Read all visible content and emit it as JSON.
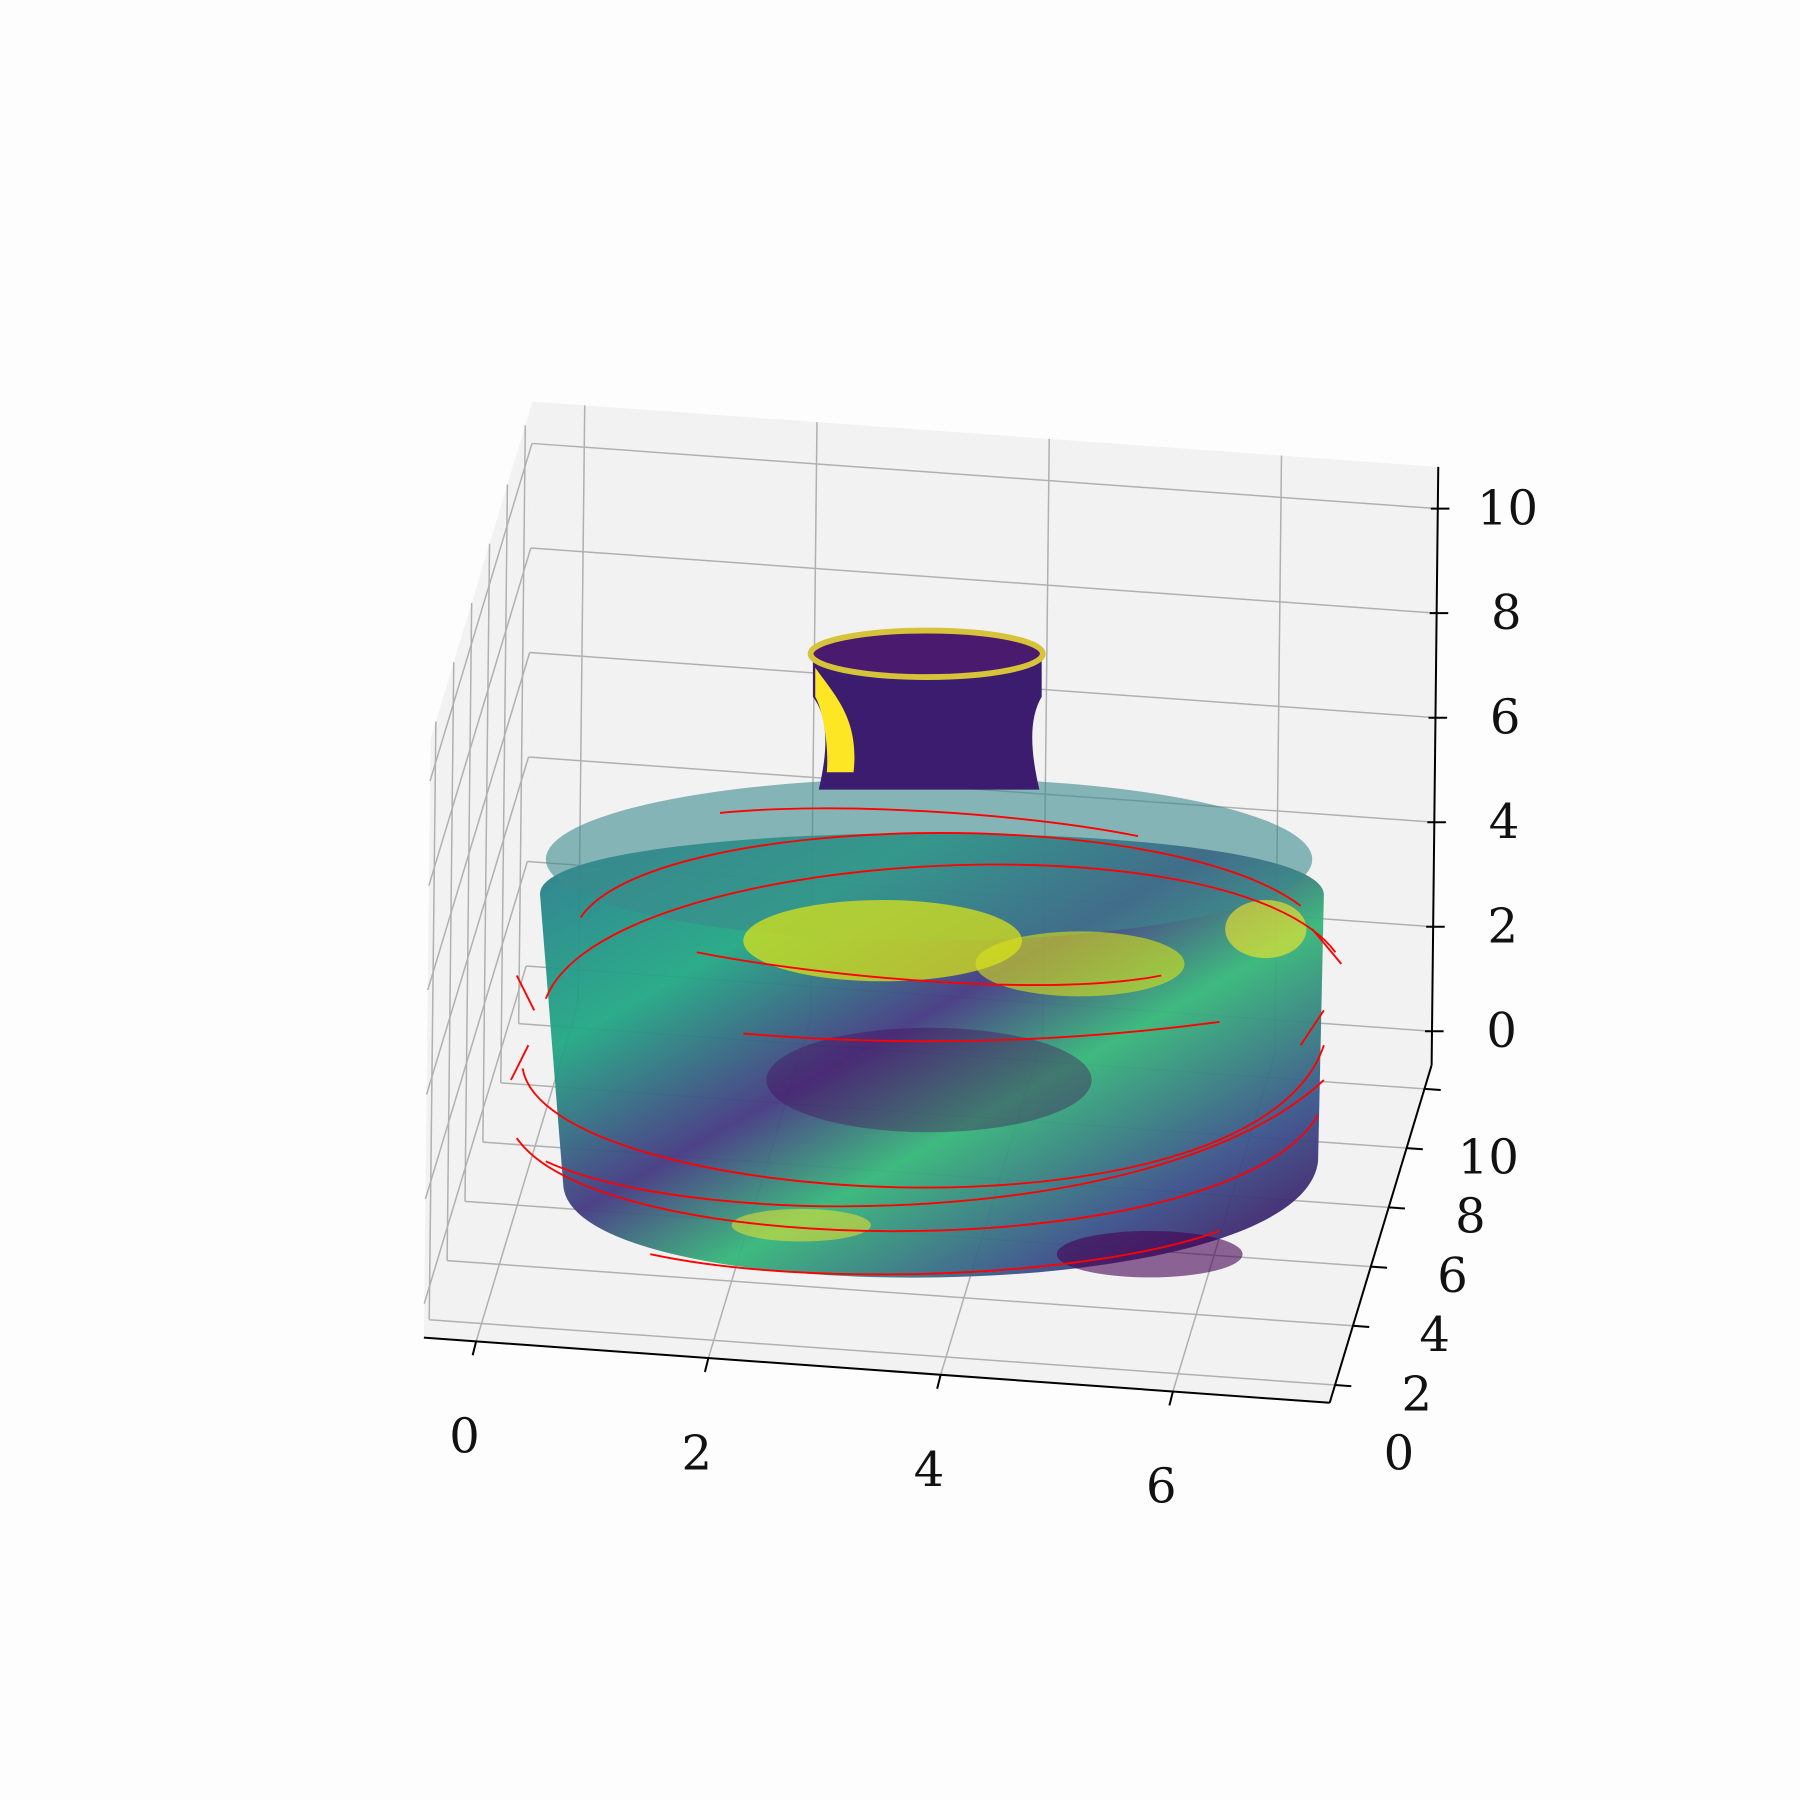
{
  "chart_data": {
    "type": "scatter3d",
    "xlim": [
      -0.45,
      7.35
    ],
    "ylim": [
      -0.6,
      10.8
    ],
    "zlim": [
      -0.65,
      10.8
    ],
    "xticks": [
      0,
      2,
      4,
      6
    ],
    "yticks": [
      0,
      2,
      4,
      6,
      8,
      10
    ],
    "zticks": [
      0,
      2,
      4,
      6,
      8,
      10
    ],
    "grid": true,
    "pane_color": "#f2f2f2",
    "grid_color": "#b0b0b0",
    "quiver_color": "#ff0000"
  }
}
